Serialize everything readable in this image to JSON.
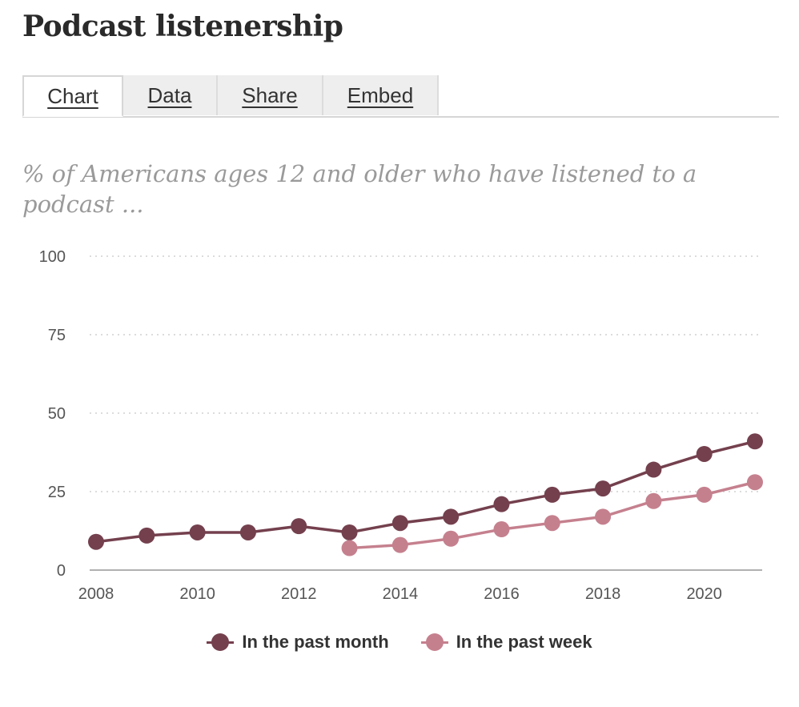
{
  "title": "Podcast listenership",
  "tabs": [
    {
      "label": "Chart",
      "active": true
    },
    {
      "label": "Data",
      "active": false
    },
    {
      "label": "Share",
      "active": false
    },
    {
      "label": "Embed",
      "active": false
    }
  ],
  "subtitle": "% of Americans ages 12 and older who have listened to a podcast ...",
  "colors": {
    "month": "#74404e",
    "week": "#c5808e",
    "grid": "#d0d0d0",
    "axis": "#b0b0b0"
  },
  "chart_data": {
    "type": "line",
    "title": "",
    "xlabel": "",
    "ylabel": "",
    "xlim": [
      2008,
      2021
    ],
    "ylim": [
      0,
      100
    ],
    "yticks": [
      0,
      25,
      50,
      75,
      100
    ],
    "xticks": [
      2008,
      2010,
      2012,
      2014,
      2016,
      2018,
      2020
    ],
    "grid": true,
    "legend_position": "bottom",
    "series": [
      {
        "name": "In the past month",
        "x": [
          2008,
          2009,
          2010,
          2011,
          2012,
          2013,
          2014,
          2015,
          2016,
          2017,
          2018,
          2019,
          2020,
          2021
        ],
        "y": [
          9,
          11,
          12,
          12,
          14,
          12,
          15,
          17,
          21,
          24,
          26,
          32,
          37,
          41
        ]
      },
      {
        "name": "In the past week",
        "x": [
          2013,
          2014,
          2015,
          2016,
          2017,
          2018,
          2019,
          2020,
          2021
        ],
        "y": [
          7,
          8,
          10,
          13,
          15,
          17,
          22,
          24,
          28
        ]
      }
    ]
  }
}
